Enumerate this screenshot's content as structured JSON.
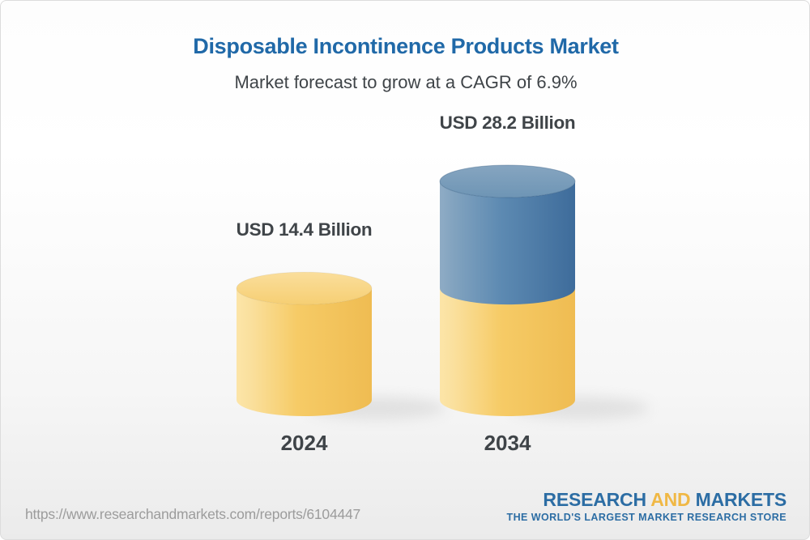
{
  "header": {
    "title": "Disposable Incontinence Products Market",
    "subtitle": "Market forecast to grow at a CAGR of 6.9%"
  },
  "chart_data": {
    "type": "bar",
    "subtype": "3d-cylinder",
    "categories": [
      "2024",
      "2034"
    ],
    "values": [
      14.4,
      28.2
    ],
    "unit": "USD Billion",
    "labels": [
      "USD 14.4 Billion",
      "USD 28.2 Billion"
    ],
    "cagr_pct": 6.9,
    "stacked_segments_2034": [
      {
        "name": "base",
        "value": 14.4,
        "color": "#F5C75F"
      },
      {
        "name": "growth",
        "value": 13.8,
        "color": "#4E7FA9"
      }
    ],
    "bar_colors": {
      "2024": "#F5C75F",
      "2034_top": "#4E7FA9",
      "2034_bottom": "#F5C75F"
    },
    "legend": "none",
    "grid": false,
    "axes": "none"
  },
  "footer": {
    "url": "https://www.researchandmarkets.com/reports/6104447",
    "logo": {
      "word1": "RESEARCH",
      "word2": "AND",
      "word3": "MARKETS",
      "tagline": "THE WORLD'S LARGEST MARKET RESEARCH STORE"
    }
  },
  "theme": {
    "title-blue": "#2069A8",
    "text-dark": "#3F4448",
    "text-gray": "#9C9C9C",
    "logo-blue": "#2C6DA4",
    "logo-gold": "#F0B845",
    "bar-yellow": "#F5C75F",
    "bar-blue": "#4E7FA9"
  }
}
